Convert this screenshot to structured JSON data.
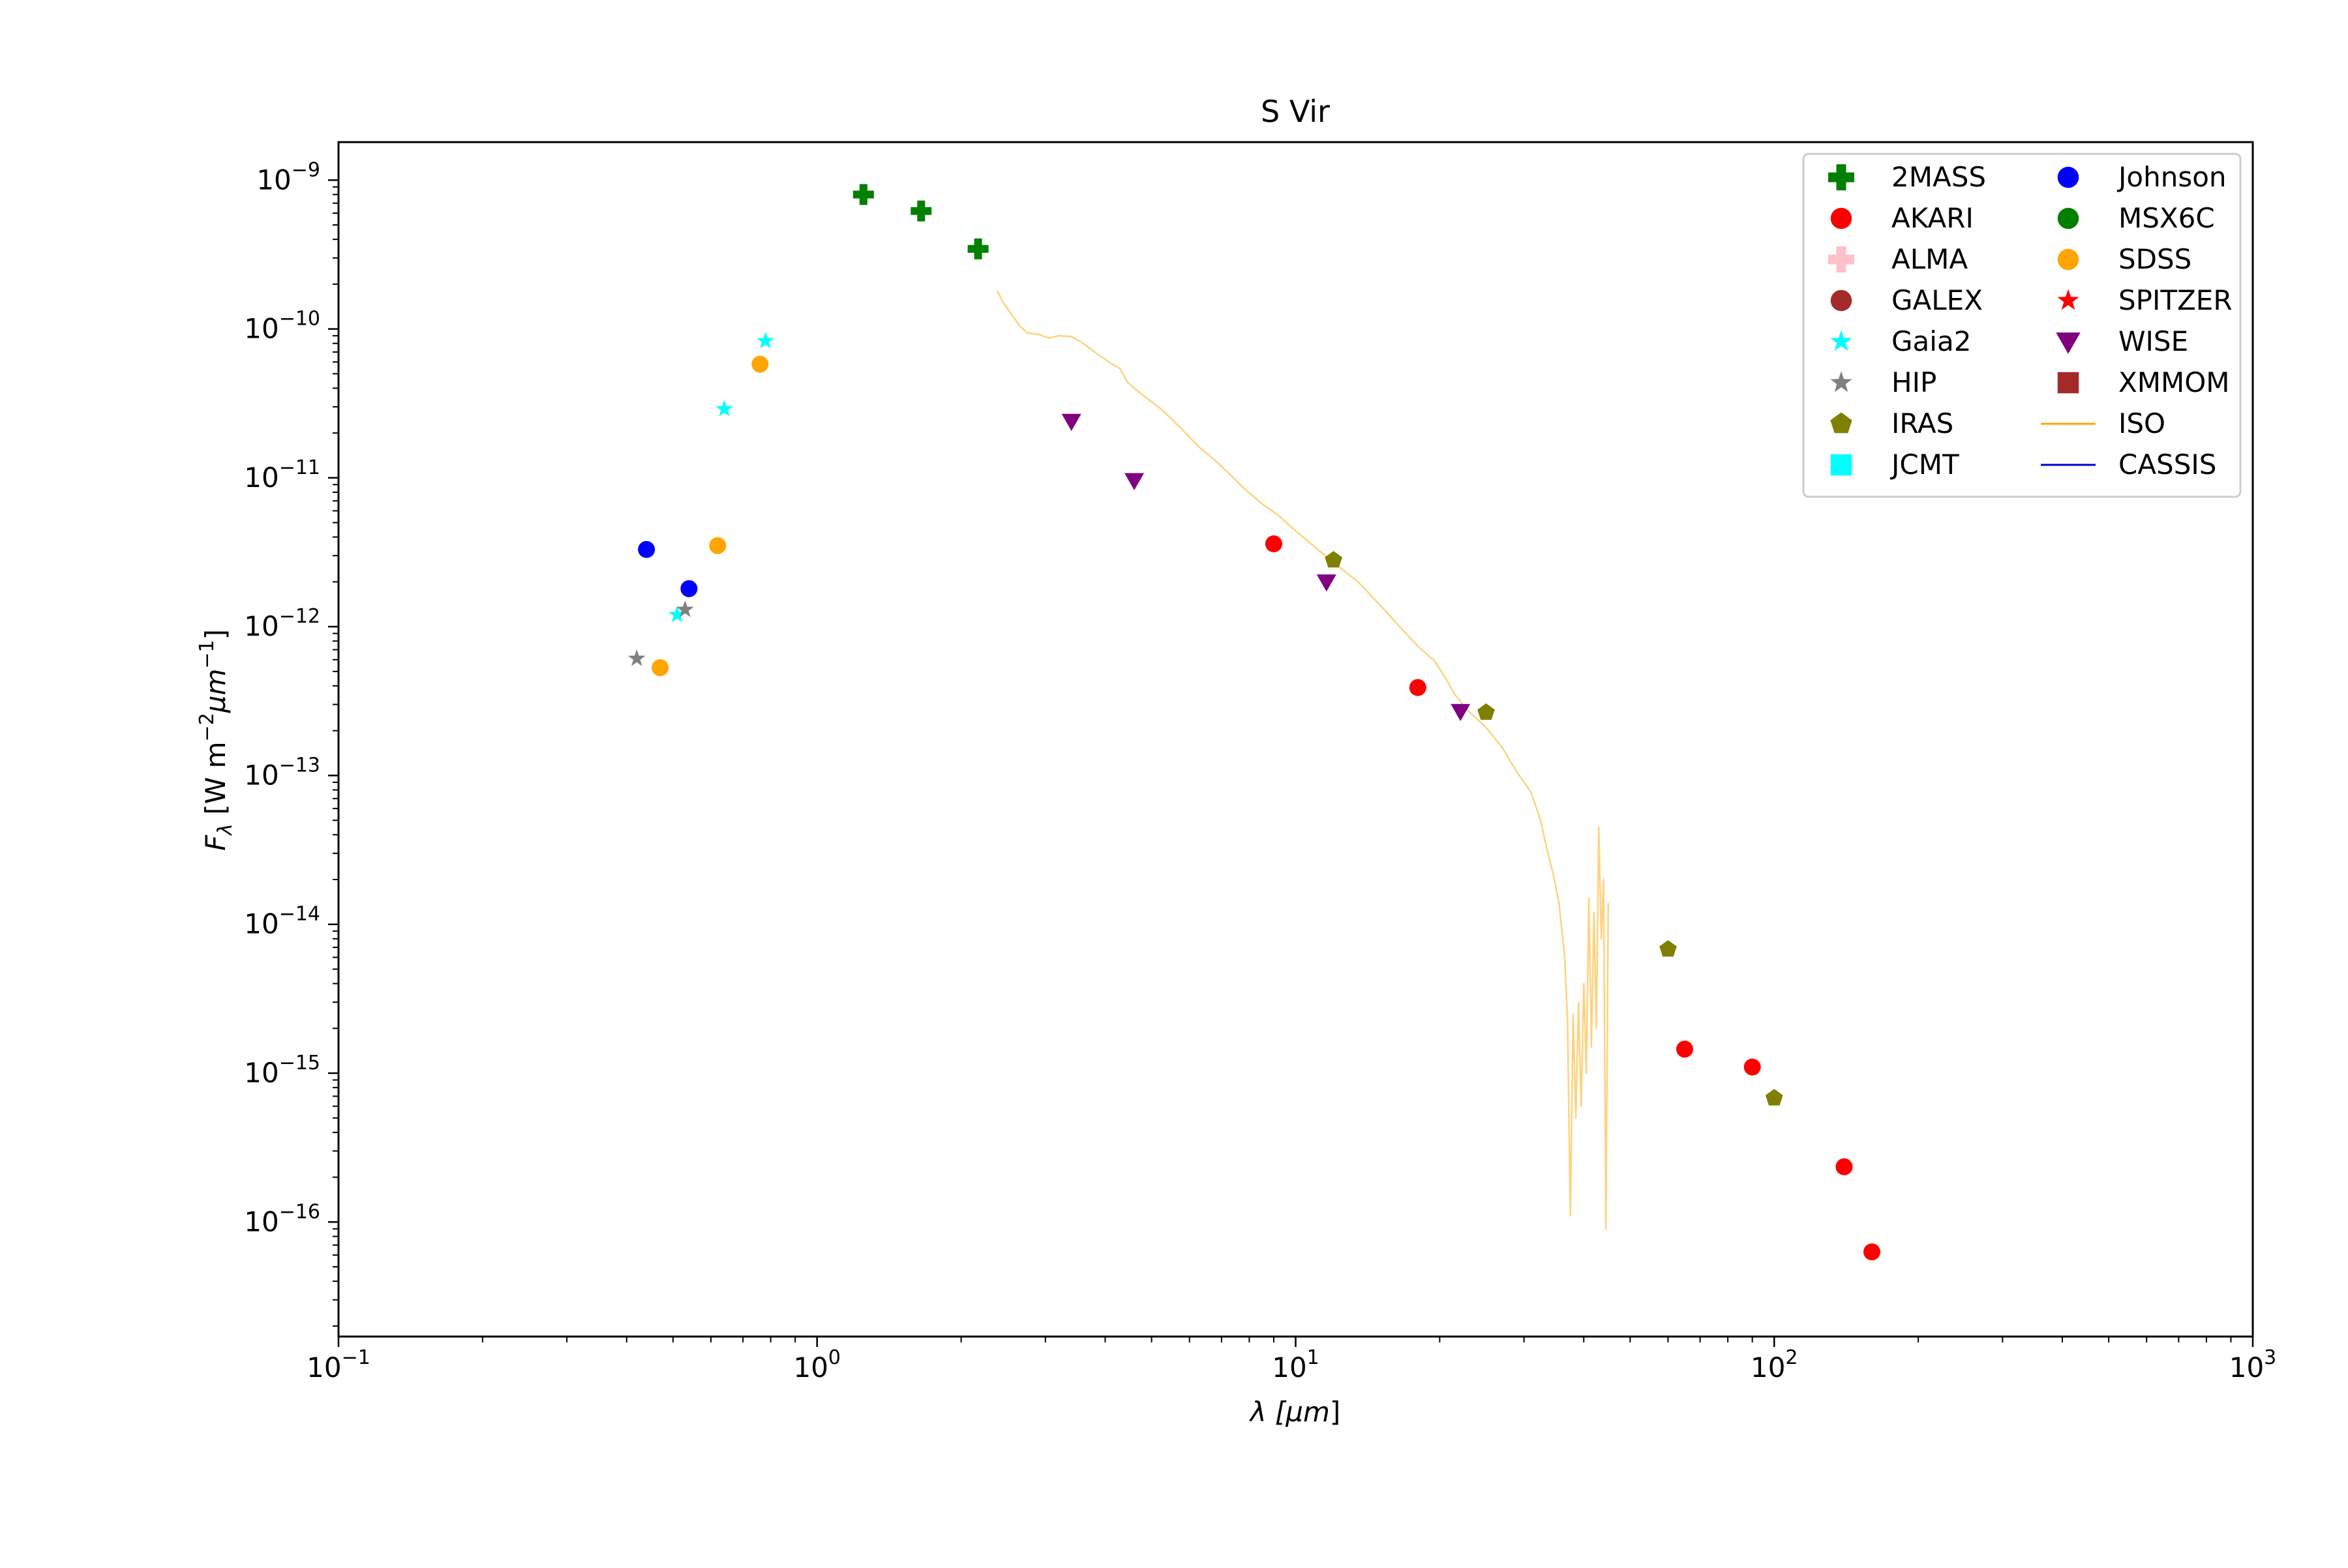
{
  "chart_data": {
    "type": "scatter",
    "title": "S Vir",
    "xlabel": "λ [μm]",
    "ylabel": "Fλ [W m⁻² μm⁻¹]",
    "xscale": "log",
    "yscale": "log",
    "xlim": [
      0.1,
      1000
    ],
    "ylim": [
      1.7e-17,
      1.8e-09
    ],
    "x_tick_labels": [
      {
        "value": 0.1,
        "base": "10",
        "exp": "−1"
      },
      {
        "value": 1,
        "base": "10",
        "exp": "0"
      },
      {
        "value": 10,
        "base": "10",
        "exp": "1"
      },
      {
        "value": 100,
        "base": "10",
        "exp": "2"
      },
      {
        "value": 1000,
        "base": "10",
        "exp": "3"
      }
    ],
    "y_tick_labels": [
      {
        "value": 1e-16,
        "base": "10",
        "exp": "−16"
      },
      {
        "value": 1e-15,
        "base": "10",
        "exp": "−15"
      },
      {
        "value": 1e-14,
        "base": "10",
        "exp": "−14"
      },
      {
        "value": 1e-13,
        "base": "10",
        "exp": "−13"
      },
      {
        "value": 1e-12,
        "base": "10",
        "exp": "−12"
      },
      {
        "value": 1e-11,
        "base": "10",
        "exp": "−11"
      },
      {
        "value": 1e-10,
        "base": "10",
        "exp": "−10"
      },
      {
        "value": 1e-09,
        "base": "10",
        "exp": "−9"
      }
    ],
    "grid": false,
    "legend_position": "top-right",
    "legend_columns": 2,
    "series": [
      {
        "name": "2MASS",
        "marker": "plus",
        "color": "#008000",
        "points": [
          [
            1.25,
            8e-10
          ],
          [
            1.65,
            6.2e-10
          ],
          [
            2.17,
            3.45e-10
          ]
        ]
      },
      {
        "name": "AKARI",
        "marker": "circle",
        "color": "#ff0000",
        "points": [
          [
            9.0,
            3.6e-12
          ],
          [
            18.0,
            3.9e-13
          ],
          [
            65.0,
            1.45e-15
          ],
          [
            90.0,
            1.1e-15
          ],
          [
            140.0,
            2.35e-16
          ],
          [
            160.0,
            6.3e-17
          ]
        ]
      },
      {
        "name": "ALMA",
        "marker": "plus",
        "color": "#ffc0cb",
        "points": []
      },
      {
        "name": "GALEX",
        "marker": "circle",
        "color": "#a52a2a",
        "points": []
      },
      {
        "name": "Gaia2",
        "marker": "star",
        "color": "#00ffff",
        "points": [
          [
            0.51,
            1.2e-12
          ],
          [
            0.64,
            2.9e-11
          ],
          [
            0.78,
            8.3e-11
          ]
        ]
      },
      {
        "name": "HIP",
        "marker": "star",
        "color": "#808080",
        "points": [
          [
            0.42,
            6.1e-13
          ],
          [
            0.53,
            1.3e-12
          ]
        ]
      },
      {
        "name": "IRAS",
        "marker": "pentagon",
        "color": "#808000",
        "points": [
          [
            12.0,
            2.8e-12
          ],
          [
            25.0,
            2.65e-13
          ],
          [
            60.0,
            6.8e-15
          ],
          [
            100.0,
            6.8e-16
          ]
        ]
      },
      {
        "name": "JCMT",
        "marker": "square",
        "color": "#00ffff",
        "points": []
      },
      {
        "name": "Johnson",
        "marker": "circle",
        "color": "#0000ff",
        "points": [
          [
            0.44,
            3.3e-12
          ],
          [
            0.54,
            1.8e-12
          ]
        ]
      },
      {
        "name": "MSX6C",
        "marker": "circle",
        "color": "#008000",
        "points": []
      },
      {
        "name": "SDSS",
        "marker": "circle",
        "color": "#ffa500",
        "points": [
          [
            0.47,
            5.3e-13
          ],
          [
            0.62,
            3.5e-12
          ],
          [
            0.76,
            5.8e-11
          ]
        ]
      },
      {
        "name": "SPITZER",
        "marker": "star",
        "color": "#ff0000",
        "points": []
      },
      {
        "name": "WISE",
        "marker": "triangle-down",
        "color": "#800080",
        "points": [
          [
            3.4,
            2.4e-11
          ],
          [
            4.6,
            9.6e-12
          ],
          [
            11.6,
            2e-12
          ],
          [
            22.1,
            2.7e-13
          ]
        ]
      },
      {
        "name": "XMMOM",
        "marker": "square",
        "color": "#a52a2a",
        "points": []
      },
      {
        "name": "ISO",
        "marker": "line",
        "color": "#ffa500",
        "opacity": 0.5,
        "points": [
          [
            2.38,
            1.8e-10
          ],
          [
            2.45,
            1.5e-10
          ],
          [
            2.55,
            1.25e-10
          ],
          [
            2.65,
            1.05e-10
          ],
          [
            2.75,
            9.4e-11
          ],
          [
            2.9,
            9.2e-11
          ],
          [
            3.05,
            8.7e-11
          ],
          [
            3.2,
            9e-11
          ],
          [
            3.4,
            8.9e-11
          ],
          [
            3.6,
            8e-11
          ],
          [
            3.8,
            7e-11
          ],
          [
            4.1,
            5.9e-11
          ],
          [
            4.3,
            5.4e-11
          ],
          [
            4.45,
            4.4e-11
          ],
          [
            4.6,
            4e-11
          ],
          [
            4.9,
            3.4e-11
          ],
          [
            5.3,
            2.8e-11
          ],
          [
            5.8,
            2.1e-11
          ],
          [
            6.3,
            1.6e-11
          ],
          [
            6.8,
            1.3e-11
          ],
          [
            7.3,
            1.05e-11
          ],
          [
            7.8,
            8.5e-12
          ],
          [
            8.5,
            6.7e-12
          ],
          [
            9.2,
            5.6e-12
          ],
          [
            10.0,
            4.4e-12
          ],
          [
            11.0,
            3.4e-12
          ],
          [
            12.0,
            2.7e-12
          ],
          [
            13.5,
            2e-12
          ],
          [
            15.0,
            1.4e-12
          ],
          [
            16.5,
            1e-12
          ],
          [
            18.0,
            7.4e-13
          ],
          [
            19.5,
            5.9e-13
          ],
          [
            20.5,
            4.6e-13
          ],
          [
            21.5,
            3.5e-13
          ],
          [
            23.0,
            2.7e-13
          ],
          [
            25.0,
            2.1e-13
          ],
          [
            27.0,
            1.55e-13
          ],
          [
            29.0,
            1.05e-13
          ],
          [
            31.0,
            7.8e-14
          ],
          [
            32.5,
            5e-14
          ],
          [
            33.5,
            3.2e-14
          ],
          [
            34.5,
            2.2e-14
          ],
          [
            35.5,
            1.4e-14
          ],
          [
            36.5,
            6e-15
          ],
          [
            37.0,
            2.2e-15
          ],
          [
            37.5,
            1.1e-16
          ],
          [
            38.0,
            2.5e-15
          ],
          [
            38.5,
            5e-16
          ],
          [
            39.0,
            3e-15
          ],
          [
            39.5,
            6e-16
          ],
          [
            40.0,
            4e-15
          ],
          [
            40.5,
            1e-15
          ],
          [
            41.0,
            1.5e-14
          ],
          [
            41.5,
            1.5e-15
          ],
          [
            42.0,
            1.2e-14
          ],
          [
            42.5,
            2e-15
          ],
          [
            43.0,
            4.5e-14
          ],
          [
            43.5,
            8e-15
          ],
          [
            44.0,
            2e-14
          ],
          [
            44.5,
            9e-17
          ],
          [
            45.0,
            1.4e-14
          ]
        ]
      },
      {
        "name": "CASSIS",
        "marker": "line",
        "color": "#0000cd",
        "points": []
      }
    ]
  }
}
